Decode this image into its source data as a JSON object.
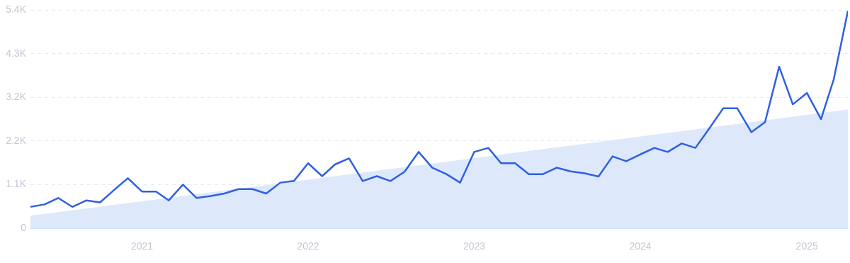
{
  "chart_data": {
    "type": "line",
    "x": [
      "2020-05",
      "2020-06",
      "2020-07",
      "2020-08",
      "2020-09",
      "2020-10",
      "2020-11",
      "2020-12",
      "2021-01",
      "2021-02",
      "2021-03",
      "2021-04",
      "2021-05",
      "2021-06",
      "2021-07",
      "2021-08",
      "2021-09",
      "2021-10",
      "2021-11",
      "2021-12",
      "2022-01",
      "2022-02",
      "2022-03",
      "2022-04",
      "2022-05",
      "2022-06",
      "2022-07",
      "2022-08",
      "2022-09",
      "2022-10",
      "2022-11",
      "2022-12",
      "2023-01",
      "2023-02",
      "2023-03",
      "2023-04",
      "2023-05",
      "2023-06",
      "2023-07",
      "2023-08",
      "2023-09",
      "2023-10",
      "2023-11",
      "2023-12",
      "2024-01",
      "2024-02",
      "2024-03",
      "2024-04",
      "2024-05",
      "2024-06",
      "2024-07",
      "2024-08",
      "2024-09",
      "2024-10",
      "2024-11",
      "2024-12",
      "2025-01",
      "2025-02",
      "2025-03",
      "2025-04"
    ],
    "series": [
      {
        "type": "line",
        "color": "#2f5fe3",
        "values": [
          530,
          590,
          750,
          530,
          690,
          640,
          950,
          1240,
          910,
          910,
          690,
          1080,
          750,
          800,
          860,
          970,
          970,
          860,
          1130,
          1170,
          1610,
          1290,
          1580,
          1730,
          1170,
          1290,
          1170,
          1400,
          1890,
          1500,
          1340,
          1130,
          1890,
          1990,
          1610,
          1610,
          1340,
          1340,
          1500,
          1410,
          1360,
          1280,
          1780,
          1660,
          1830,
          1990,
          1890,
          2100,
          1990,
          2480,
          2970,
          2970,
          2380,
          2630,
          4000,
          3070,
          3350,
          2700,
          3690,
          5380
        ]
      },
      {
        "type": "area",
        "color": "#dde9fb",
        "x": [
          "2020-05",
          "2025-04"
        ],
        "values": [
          310,
          2940
        ]
      }
    ],
    "xlim": [
      "2020-05",
      "2025-04"
    ],
    "xticks": [
      {
        "value": "2021-01",
        "label": "2021"
      },
      {
        "value": "2022-01",
        "label": "2022"
      },
      {
        "value": "2023-01",
        "label": "2023"
      },
      {
        "value": "2024-01",
        "label": "2024"
      },
      {
        "value": "2025-01",
        "label": "2025"
      }
    ],
    "ylim": [
      0,
      5400
    ],
    "yticks": [
      {
        "value": 0,
        "label": "0"
      },
      {
        "value": 1080,
        "label": "1.1K"
      },
      {
        "value": 2160,
        "label": "2.2K"
      },
      {
        "value": 3240,
        "label": "3.2K"
      },
      {
        "value": 4320,
        "label": "4.3K"
      },
      {
        "value": 5400,
        "label": "5.4K"
      }
    ],
    "grid": "y",
    "marker": "none",
    "line_style": "solid",
    "legend": false
  }
}
